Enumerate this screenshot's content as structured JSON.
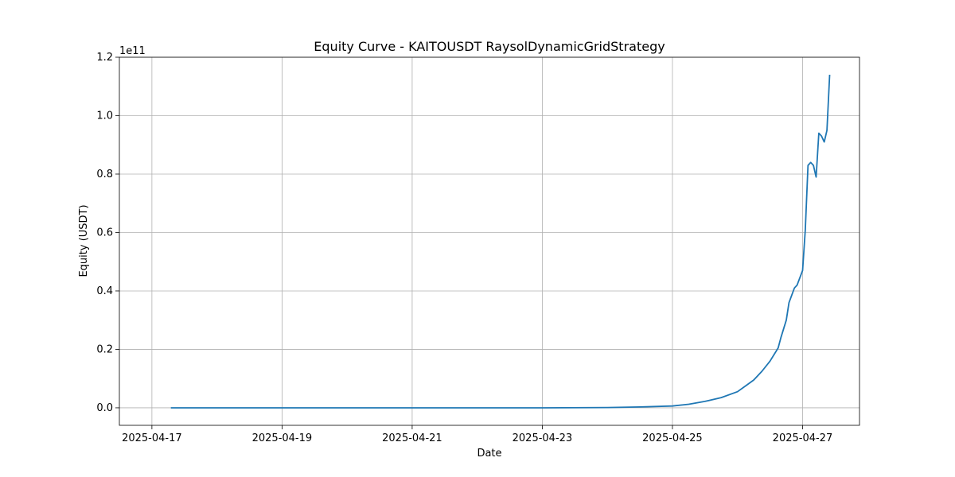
{
  "chart_data": {
    "type": "line",
    "title": "Equity Curve - KAITOUSDT RaysolDynamicGridStrategy",
    "xlabel": "Date",
    "ylabel": "Equity (USDT)",
    "y_offset_label": "1e11",
    "grid": true,
    "x_ticks": [
      "2025-04-17",
      "2025-04-19",
      "2025-04-21",
      "2025-04-23",
      "2025-04-25",
      "2025-04-27"
    ],
    "y_ticks": [
      "0.0",
      "0.2",
      "0.4",
      "0.6",
      "0.8",
      "1.0",
      "1.2"
    ],
    "xlim": [
      "2025-04-16 12:00",
      "2025-04-27 21:00"
    ],
    "ylim": [
      -0.06,
      1.2
    ],
    "y_scale_note": "values in units of 1e11 USDT",
    "series": [
      {
        "color": "#1f77b4",
        "x": [
          "2025-04-17 07:00",
          "2025-04-19 00:00",
          "2025-04-21 00:00",
          "2025-04-23 00:00",
          "2025-04-24 00:00",
          "2025-04-24 12:00",
          "2025-04-25 00:00",
          "2025-04-25 06:00",
          "2025-04-25 12:00",
          "2025-04-25 18:00",
          "2025-04-26 00:00",
          "2025-04-26 03:00",
          "2025-04-26 06:00",
          "2025-04-26 09:00",
          "2025-04-26 12:00",
          "2025-04-26 15:00",
          "2025-04-26 16:00",
          "2025-04-26 18:00",
          "2025-04-26 19:00",
          "2025-04-26 21:00",
          "2025-04-26 22:00",
          "2025-04-27 00:00",
          "2025-04-27 01:00",
          "2025-04-27 02:00",
          "2025-04-27 03:00",
          "2025-04-27 04:00",
          "2025-04-27 05:00",
          "2025-04-27 06:00",
          "2025-04-27 07:00",
          "2025-04-27 08:00",
          "2025-04-27 09:00",
          "2025-04-27 10:00"
        ],
        "y": [
          0.0,
          0.0,
          0.0,
          0.0,
          0.001,
          0.003,
          0.006,
          0.012,
          0.022,
          0.035,
          0.055,
          0.075,
          0.095,
          0.125,
          0.16,
          0.205,
          0.24,
          0.3,
          0.36,
          0.41,
          0.42,
          0.47,
          0.61,
          0.83,
          0.84,
          0.83,
          0.79,
          0.94,
          0.93,
          0.91,
          0.95,
          1.14
        ]
      }
    ]
  }
}
